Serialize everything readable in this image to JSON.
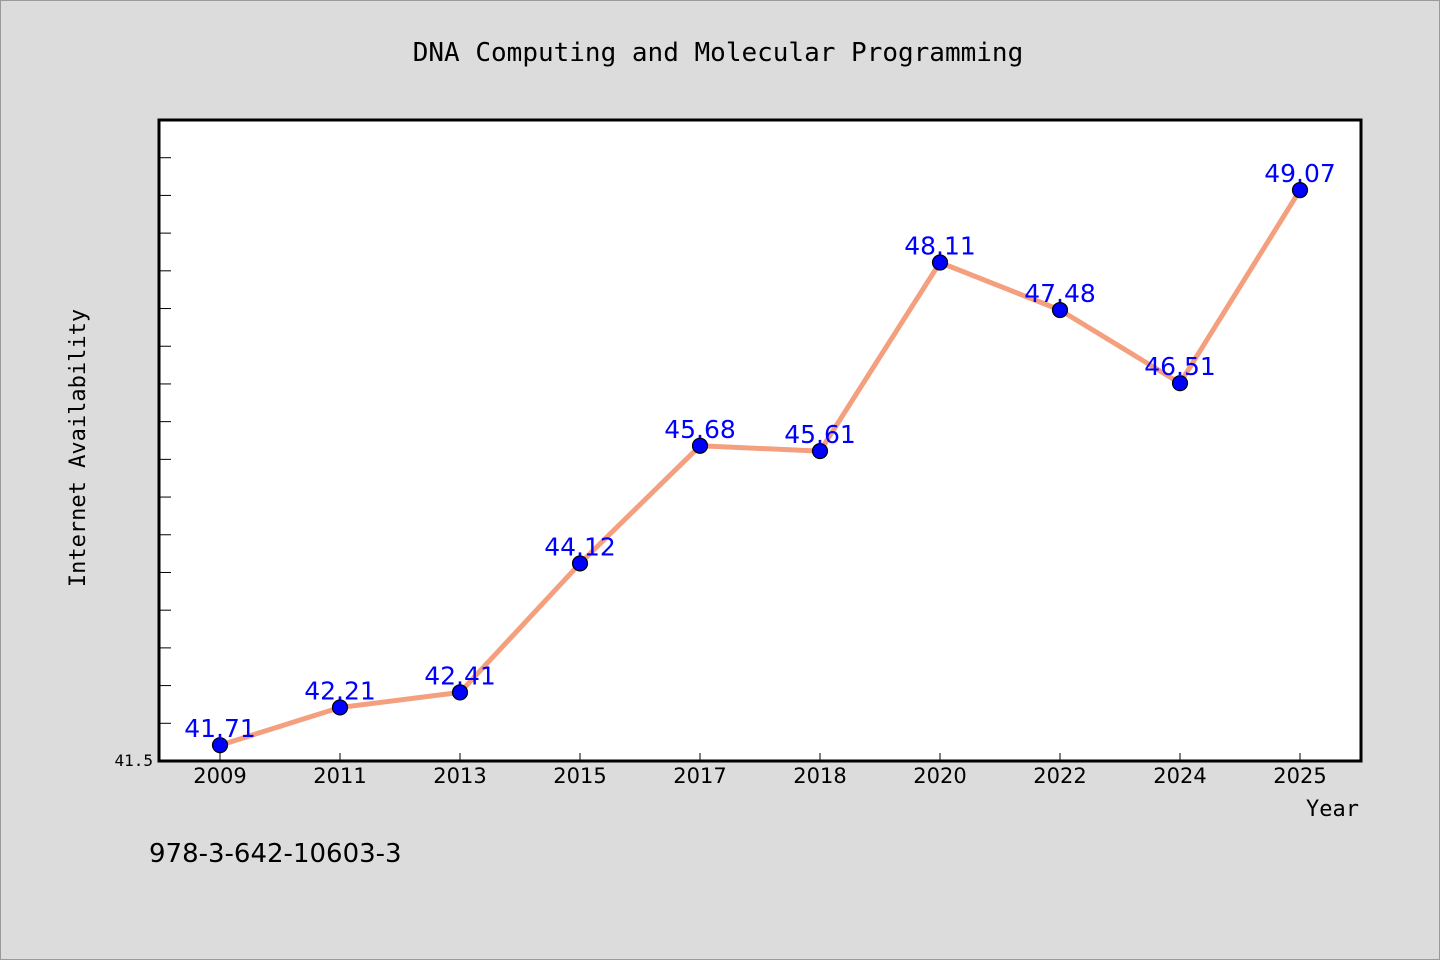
{
  "chart_data": {
    "type": "line",
    "title": "DNA Computing and Molecular Programming",
    "xlabel": "Year",
    "ylabel": "Internet Availability",
    "categories": [
      "2009",
      "2011",
      "2013",
      "2015",
      "2017",
      "2018",
      "2020",
      "2022",
      "2024",
      "2025"
    ],
    "series": [
      {
        "values": [
          41.71,
          42.21,
          42.41,
          44.12,
          45.68,
          45.61,
          48.11,
          47.48,
          46.51,
          49.07
        ],
        "labels": [
          "41.71",
          "42.21",
          "42.41",
          "44.12",
          "45.68",
          "45.61",
          "48.11",
          "47.48",
          "46.51",
          "49.07"
        ]
      }
    ],
    "ylim": [
      41.5,
      50.0
    ],
    "y_min_label": "41.5",
    "grid": false,
    "legend": "none",
    "colors": {
      "line": "#f4a07f",
      "marker": "#0000ff",
      "label": "#0000ff",
      "plot_bg": "#ffffff",
      "page_bg": "#dcdcdc"
    }
  },
  "footer": {
    "isbn": "978-3-642-10603-3"
  }
}
